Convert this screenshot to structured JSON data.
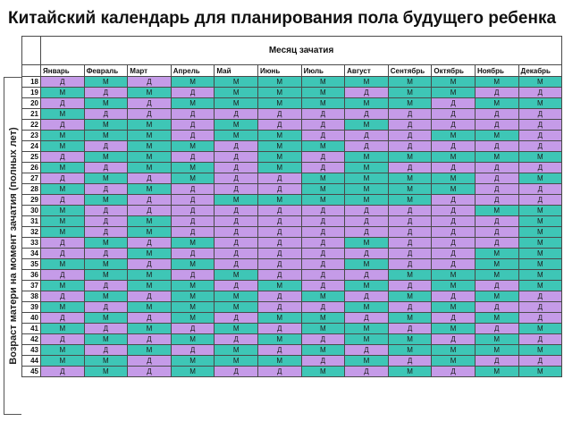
{
  "title": "Китайский календарь для планирования пола будущего ребенка",
  "side_label": "Возраст матери на момент зачатия (полных лет)",
  "month_header": "Месяц зачатия",
  "months": [
    "Январь",
    "Февраль",
    "Март",
    "Апрель",
    "Май",
    "Июнь",
    "Июль",
    "Август",
    "Сентябрь",
    "Октябрь",
    "Ноябрь",
    "Декабрь"
  ],
  "colors": {
    "M": "#3ec6b6",
    "Д": "#c59be8"
  },
  "rows": [
    {
      "age": "18",
      "cells": [
        "Д",
        "М",
        "Д",
        "М",
        "М",
        "М",
        "М",
        "М",
        "М",
        "М",
        "М",
        "М"
      ]
    },
    {
      "age": "19",
      "cells": [
        "М",
        "Д",
        "М",
        "Д",
        "М",
        "М",
        "М",
        "Д",
        "М",
        "М",
        "Д",
        "Д"
      ]
    },
    {
      "age": "20",
      "cells": [
        "Д",
        "М",
        "Д",
        "М",
        "М",
        "М",
        "М",
        "М",
        "М",
        "Д",
        "М",
        "М"
      ]
    },
    {
      "age": "21",
      "cells": [
        "М",
        "Д",
        "Д",
        "Д",
        "Д",
        "Д",
        "Д",
        "Д",
        "Д",
        "Д",
        "Д",
        "Д"
      ]
    },
    {
      "age": "22",
      "cells": [
        "Д",
        "М",
        "М",
        "Д",
        "М",
        "Д",
        "Д",
        "М",
        "Д",
        "Д",
        "Д",
        "Д"
      ]
    },
    {
      "age": "23",
      "cells": [
        "М",
        "М",
        "М",
        "Д",
        "М",
        "М",
        "Д",
        "Д",
        "Д",
        "М",
        "М",
        "Д"
      ]
    },
    {
      "age": "24",
      "cells": [
        "М",
        "Д",
        "М",
        "М",
        "Д",
        "М",
        "М",
        "Д",
        "Д",
        "Д",
        "Д",
        "Д"
      ]
    },
    {
      "age": "25",
      "cells": [
        "Д",
        "М",
        "М",
        "Д",
        "Д",
        "М",
        "Д",
        "М",
        "М",
        "М",
        "М",
        "М"
      ]
    },
    {
      "age": "26",
      "cells": [
        "М",
        "Д",
        "М",
        "М",
        "Д",
        "М",
        "Д",
        "М",
        "Д",
        "Д",
        "Д",
        "Д"
      ]
    },
    {
      "age": "27",
      "cells": [
        "Д",
        "М",
        "Д",
        "М",
        "Д",
        "Д",
        "М",
        "М",
        "М",
        "М",
        "Д",
        "М"
      ]
    },
    {
      "age": "28",
      "cells": [
        "М",
        "Д",
        "М",
        "Д",
        "Д",
        "Д",
        "М",
        "М",
        "М",
        "М",
        "Д",
        "Д"
      ]
    },
    {
      "age": "29",
      "cells": [
        "Д",
        "М",
        "Д",
        "Д",
        "М",
        "М",
        "М",
        "М",
        "М",
        "Д",
        "Д",
        "Д"
      ]
    },
    {
      "age": "30",
      "cells": [
        "М",
        "Д",
        "Д",
        "Д",
        "Д",
        "Д",
        "Д",
        "Д",
        "Д",
        "Д",
        "М",
        "М"
      ]
    },
    {
      "age": "31",
      "cells": [
        "М",
        "Д",
        "М",
        "Д",
        "Д",
        "Д",
        "Д",
        "Д",
        "Д",
        "Д",
        "Д",
        "М"
      ]
    },
    {
      "age": "32",
      "cells": [
        "М",
        "Д",
        "М",
        "Д",
        "Д",
        "Д",
        "Д",
        "Д",
        "Д",
        "Д",
        "Д",
        "М"
      ]
    },
    {
      "age": "33",
      "cells": [
        "Д",
        "М",
        "Д",
        "М",
        "Д",
        "Д",
        "Д",
        "М",
        "Д",
        "Д",
        "Д",
        "М"
      ]
    },
    {
      "age": "34",
      "cells": [
        "Д",
        "Д",
        "М",
        "Д",
        "Д",
        "Д",
        "Д",
        "Д",
        "Д",
        "Д",
        "М",
        "М"
      ]
    },
    {
      "age": "35",
      "cells": [
        "М",
        "М",
        "Д",
        "М",
        "Д",
        "Д",
        "Д",
        "М",
        "Д",
        "Д",
        "М",
        "М"
      ]
    },
    {
      "age": "36",
      "cells": [
        "Д",
        "М",
        "М",
        "Д",
        "М",
        "Д",
        "Д",
        "Д",
        "М",
        "М",
        "М",
        "М"
      ]
    },
    {
      "age": "37",
      "cells": [
        "М",
        "Д",
        "М",
        "М",
        "Д",
        "М",
        "Д",
        "М",
        "Д",
        "М",
        "Д",
        "М"
      ]
    },
    {
      "age": "38",
      "cells": [
        "Д",
        "М",
        "Д",
        "М",
        "М",
        "Д",
        "М",
        "Д",
        "М",
        "Д",
        "М",
        "Д"
      ]
    },
    {
      "age": "39",
      "cells": [
        "М",
        "Д",
        "М",
        "М",
        "М",
        "Д",
        "Д",
        "М",
        "Д",
        "М",
        "Д",
        "Д"
      ]
    },
    {
      "age": "40",
      "cells": [
        "Д",
        "М",
        "Д",
        "М",
        "Д",
        "М",
        "М",
        "Д",
        "М",
        "Д",
        "М",
        "Д"
      ]
    },
    {
      "age": "41",
      "cells": [
        "М",
        "Д",
        "М",
        "Д",
        "М",
        "Д",
        "М",
        "М",
        "Д",
        "М",
        "Д",
        "М"
      ]
    },
    {
      "age": "42",
      "cells": [
        "Д",
        "М",
        "Д",
        "М",
        "Д",
        "М",
        "Д",
        "М",
        "М",
        "Д",
        "М",
        "Д"
      ]
    },
    {
      "age": "43",
      "cells": [
        "М",
        "Д",
        "М",
        "Д",
        "М",
        "Д",
        "М",
        "Д",
        "М",
        "М",
        "М",
        "М"
      ]
    },
    {
      "age": "44",
      "cells": [
        "М",
        "М",
        "Д",
        "М",
        "М",
        "М",
        "Д",
        "М",
        "Д",
        "М",
        "Д",
        "Д"
      ]
    },
    {
      "age": "45",
      "cells": [
        "Д",
        "М",
        "Д",
        "М",
        "Д",
        "Д",
        "М",
        "Д",
        "М",
        "Д",
        "М",
        "М"
      ]
    }
  ]
}
